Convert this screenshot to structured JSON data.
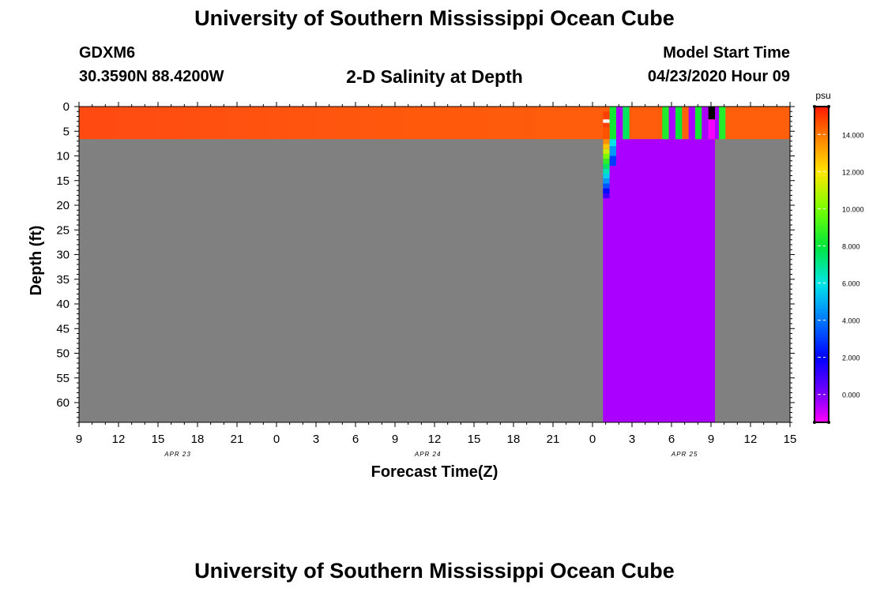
{
  "header": {
    "top_title": "University of Southern Mississippi Ocean Cube",
    "bottom_title": "University of Southern Mississippi Ocean Cube",
    "station_id": "GDXM6",
    "station_coords": "30.3590N 88.4200W",
    "plot_title": "2-D Salinity at Depth",
    "model_start_label": "Model Start Time",
    "model_start_value": "04/23/2020 Hour 09"
  },
  "colors": {
    "background_gray": "#808080",
    "purple": "#7f00ff",
    "orange": "#ff5a0f",
    "white": "#ffffff"
  },
  "chart_data": {
    "type": "heatmap",
    "title": "2-D Salinity at Depth",
    "xlabel": "Forecast Time(Z)",
    "ylabel": "Depth (ft)",
    "xlim": [
      0,
      54
    ],
    "ylim": [
      0,
      64
    ],
    "y_reversed": true,
    "x_tick_hours": [
      0,
      3,
      6,
      9,
      12,
      15,
      18,
      21,
      24,
      27,
      30,
      33,
      36,
      39,
      42,
      45,
      48,
      51,
      54
    ],
    "x_tick_labels": [
      "9",
      "12",
      "15",
      "18",
      "21",
      "0",
      "3",
      "6",
      "9",
      "12",
      "15",
      "18",
      "21",
      "0",
      "3",
      "6",
      "9",
      "12",
      "15"
    ],
    "date_labels": [
      {
        "hour": 7.5,
        "text": "APR 23"
      },
      {
        "hour": 26.5,
        "text": "APR 24"
      },
      {
        "hour": 46,
        "text": "APR 25"
      }
    ],
    "y_ticks": [
      0,
      5,
      10,
      15,
      20,
      25,
      30,
      35,
      40,
      45,
      50,
      55,
      60
    ],
    "y_tick_labels": [
      "0",
      "5",
      "10",
      "15",
      "20",
      "25",
      "30",
      "35",
      "40",
      "45",
      "50",
      "55",
      "60"
    ],
    "colorbar": {
      "units": "psu",
      "vmin": -1.5,
      "vmax": 15.5,
      "ticks": [
        14,
        12,
        10,
        8,
        6,
        4,
        2,
        0
      ],
      "tick_labels": [
        "14.000",
        "12.000",
        "10.000",
        "8.000",
        "6.000",
        "4.000",
        "2.000",
        "0.000"
      ]
    },
    "fields": [
      {
        "name": "surface-layer",
        "x0": 0,
        "x1": 54,
        "y0": 0,
        "y1": 6.6,
        "value": 14.4
      },
      {
        "name": "deep-water-freshwater",
        "x0": 39.8,
        "x1": 48.3,
        "y0": 6.6,
        "y1": 64,
        "value": -0.5
      },
      {
        "name": "transition-cell-1",
        "x0": 39.8,
        "x1": 40.3,
        "y0": 1,
        "y1": 4.2,
        "value": 14.9
      },
      {
        "name": "white-marker-cell",
        "x0": 39.8,
        "x1": 40.3,
        "y0": 2.6,
        "y1": 3.3,
        "value": null,
        "color": "#ffffff"
      },
      {
        "name": "stripe-green-1",
        "x0": 40.3,
        "x1": 40.8,
        "y0": 0,
        "y1": 6.6,
        "value": 8.3
      },
      {
        "name": "stripe-purple-1",
        "x0": 40.8,
        "x1": 41.3,
        "y0": 0,
        "y1": 6.6,
        "value": -0.5
      },
      {
        "name": "stripe-green-2",
        "x0": 41.3,
        "x1": 41.8,
        "y0": 0,
        "y1": 6.6,
        "value": 7.6
      },
      {
        "name": "stripe-green-3",
        "x0": 44.3,
        "x1": 44.8,
        "y0": 0,
        "y1": 6.6,
        "value": 8.5
      },
      {
        "name": "stripe-purple-2",
        "x0": 44.8,
        "x1": 45.3,
        "y0": 0,
        "y1": 6.6,
        "value": -0.5
      },
      {
        "name": "stripe-green-4",
        "x0": 45.3,
        "x1": 45.8,
        "y0": 0,
        "y1": 6.6,
        "value": 8.1
      },
      {
        "name": "stripe-purple-3",
        "x0": 46.3,
        "x1": 46.8,
        "y0": 0,
        "y1": 6.6,
        "value": -0.5
      },
      {
        "name": "stripe-green-5",
        "x0": 46.8,
        "x1": 47.3,
        "y0": 0,
        "y1": 6.6,
        "value": 8.3
      },
      {
        "name": "stripe-purple-4",
        "x0": 47.3,
        "x1": 47.8,
        "y0": 0,
        "y1": 6.6,
        "value": -0.5
      },
      {
        "name": "stripe-black-cell",
        "x0": 47.8,
        "x1": 48.3,
        "y0": 0,
        "y1": 2.6,
        "value": null,
        "color": "#000000"
      },
      {
        "name": "stripe-magenta-cell",
        "x0": 47.8,
        "x1": 48.3,
        "y0": 2.6,
        "y1": 6.6,
        "value": -1.4
      },
      {
        "name": "stripe-purple-5",
        "x0": 48.3,
        "x1": 48.6,
        "y0": 0,
        "y1": 6.6,
        "value": -0.5
      },
      {
        "name": "stripe-green-6",
        "x0": 48.6,
        "x1": 49.1,
        "y0": 0,
        "y1": 6.6,
        "value": 8.6
      }
    ],
    "gradient_column": {
      "x0": 39.8,
      "x1": 40.3,
      "cells": [
        {
          "y0": 4.2,
          "y1": 6.6,
          "value": 14.6
        },
        {
          "y0": 6.6,
          "y1": 7.6,
          "value": 13.6
        },
        {
          "y0": 7.6,
          "y1": 8.6,
          "value": 12.6
        },
        {
          "y0": 8.6,
          "y1": 9.6,
          "value": 11.2
        },
        {
          "y0": 9.6,
          "y1": 10.6,
          "value": 10.0
        },
        {
          "y0": 10.6,
          "y1": 11.6,
          "value": 8.8
        },
        {
          "y0": 11.6,
          "y1": 12.6,
          "value": 7.6
        },
        {
          "y0": 12.6,
          "y1": 13.6,
          "value": 6.6
        },
        {
          "y0": 13.6,
          "y1": 14.6,
          "value": 5.6
        },
        {
          "y0": 14.6,
          "y1": 15.6,
          "value": 4.6
        },
        {
          "y0": 15.6,
          "y1": 16.6,
          "value": 3.4
        },
        {
          "y0": 16.6,
          "y1": 17.6,
          "value": 2.2
        },
        {
          "y0": 17.6,
          "y1": 18.6,
          "value": 1.0
        }
      ]
    },
    "gradient_column_2": {
      "x0": 40.3,
      "x1": 40.8,
      "cells": [
        {
          "y0": 6.6,
          "y1": 8.0,
          "value": 6.0
        },
        {
          "y0": 8.0,
          "y1": 10.0,
          "value": 4.6
        },
        {
          "y0": 10.0,
          "y1": 12.0,
          "value": 3.0
        }
      ]
    }
  }
}
